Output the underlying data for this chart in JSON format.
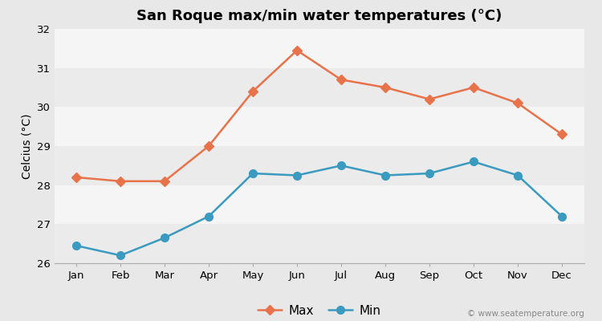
{
  "title": "San Roque max/min water temperatures (°C)",
  "ylabel": "Celcius (°C)",
  "months": [
    "Jan",
    "Feb",
    "Mar",
    "Apr",
    "May",
    "Jun",
    "Jul",
    "Aug",
    "Sep",
    "Oct",
    "Nov",
    "Dec"
  ],
  "max_values": [
    28.2,
    28.1,
    28.1,
    29.0,
    30.4,
    31.45,
    30.7,
    30.5,
    30.2,
    30.5,
    30.1,
    29.3
  ],
  "min_values": [
    26.45,
    26.2,
    26.65,
    27.2,
    28.3,
    28.25,
    28.5,
    28.25,
    28.3,
    28.6,
    28.25,
    27.2
  ],
  "max_color": "#e8724a",
  "min_color": "#3a9abf",
  "outer_bg": "#e8e8e8",
  "band_colors": [
    "#ebebeb",
    "#f5f5f5"
  ],
  "ylim": [
    26,
    32
  ],
  "yticks": [
    26,
    27,
    28,
    29,
    30,
    31,
    32
  ],
  "watermark": "© www.seatemperature.org",
  "legend_labels": [
    "Max",
    "Min"
  ],
  "title_fontsize": 13,
  "label_fontsize": 10,
  "tick_fontsize": 9.5
}
